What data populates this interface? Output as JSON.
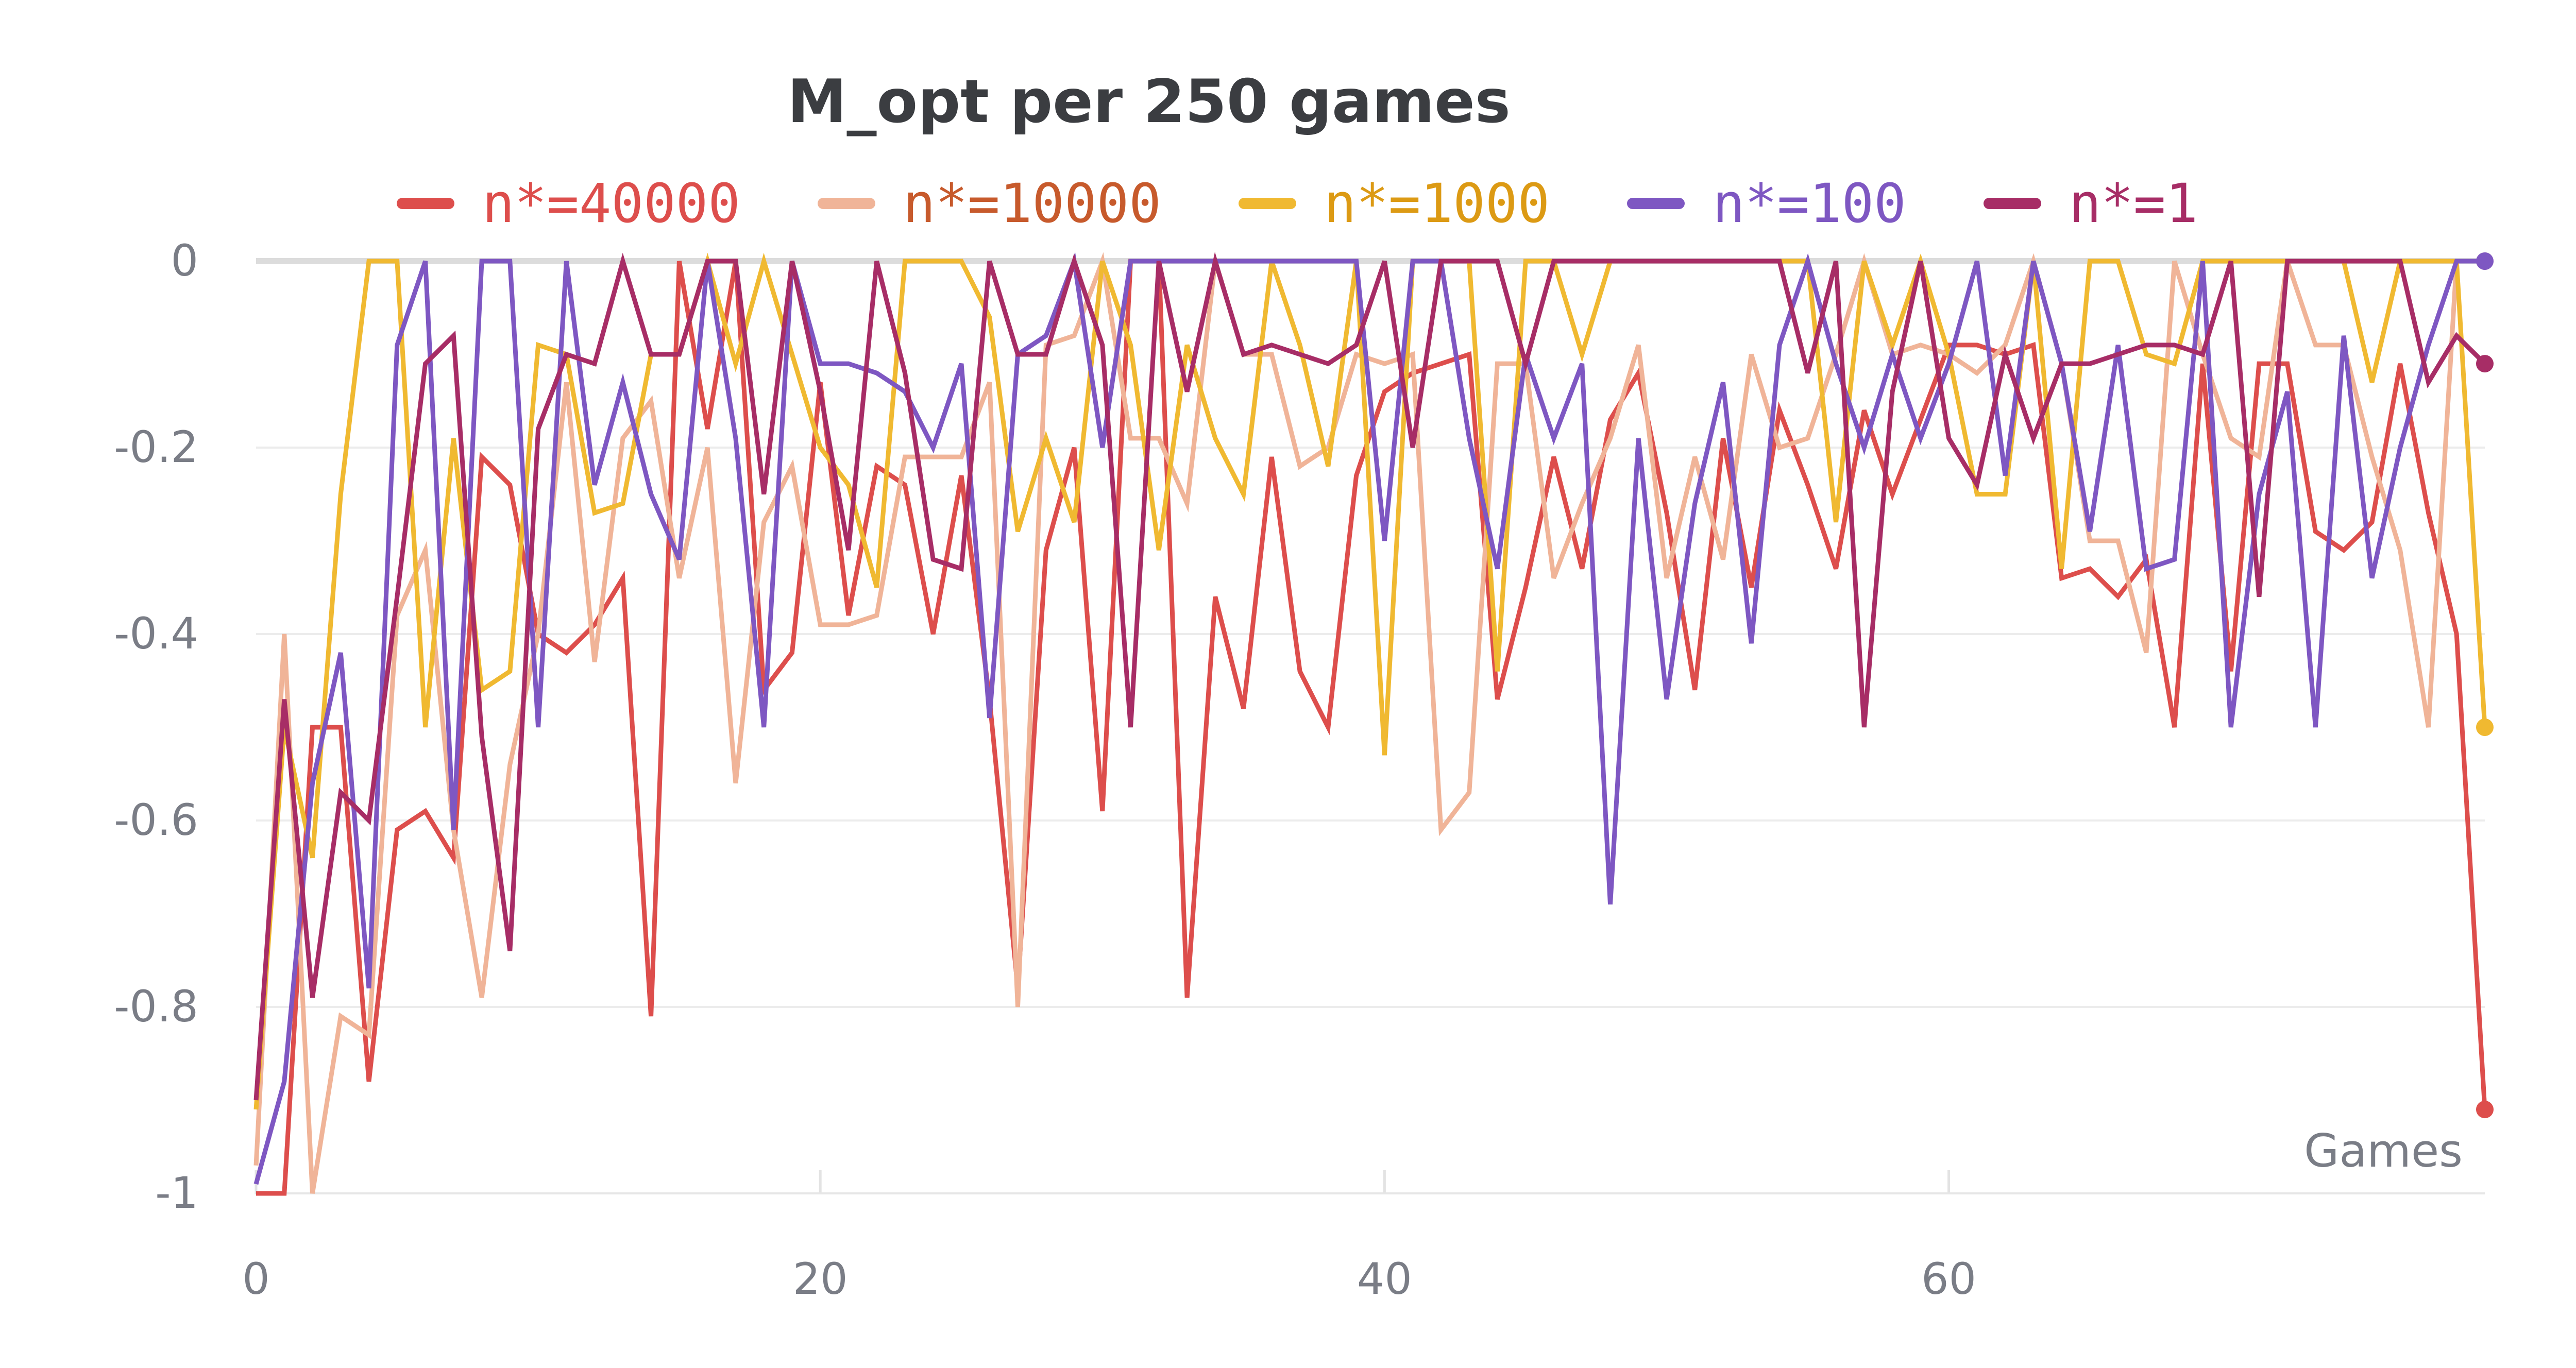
{
  "chart_data": {
    "type": "line",
    "title": "M_opt per 250 games",
    "xlabel": "Games",
    "ylabel": "",
    "xlim": [
      0,
      79
    ],
    "ylim": [
      -1,
      0
    ],
    "x_ticks": [
      0,
      20,
      40,
      60
    ],
    "y_ticks": [
      0,
      -0.2,
      -0.4,
      -0.6,
      -0.8,
      -1
    ],
    "y_tick_labels": [
      "0",
      "-0.2",
      "-0.4",
      "-0.6",
      "-0.8",
      "-1"
    ],
    "grid": true,
    "legend_position": "top",
    "x": [
      0,
      1,
      2,
      3,
      4,
      5,
      6,
      7,
      8,
      9,
      10,
      11,
      12,
      13,
      14,
      15,
      16,
      17,
      18,
      19,
      20,
      21,
      22,
      23,
      24,
      25,
      26,
      27,
      28,
      29,
      30,
      31,
      32,
      33,
      34,
      35,
      36,
      37,
      38,
      39,
      40,
      41,
      42,
      43,
      44,
      45,
      46,
      47,
      48,
      49,
      50,
      51,
      52,
      53,
      54,
      55,
      56,
      57,
      58,
      59,
      60,
      61,
      62,
      63,
      64,
      65,
      66,
      67,
      68,
      69,
      70,
      71,
      72,
      73,
      74,
      75,
      76,
      77,
      78,
      79
    ],
    "series": [
      {
        "name": "n*=40000",
        "color": "#dd4e4c",
        "values": [
          -1,
          -1,
          -0.5,
          -0.5,
          -0.88,
          -0.61,
          -0.59,
          -0.64,
          -0.21,
          -0.24,
          -0.4,
          -0.42,
          -0.39,
          -0.34,
          -0.81,
          0,
          -0.18,
          0,
          -0.46,
          -0.42,
          -0.13,
          -0.38,
          -0.22,
          -0.24,
          -0.4,
          -0.23,
          -0.47,
          -0.78,
          -0.31,
          -0.2,
          -0.59,
          0,
          0,
          -0.79,
          -0.36,
          -0.48,
          -0.21,
          -0.44,
          -0.5,
          -0.23,
          -0.14,
          -0.12,
          -0.11,
          -0.1,
          -0.47,
          -0.35,
          -0.21,
          -0.33,
          -0.17,
          -0.12,
          -0.27,
          -0.46,
          -0.19,
          -0.35,
          -0.16,
          -0.24,
          -0.33,
          -0.16,
          -0.25,
          -0.17,
          -0.09,
          -0.09,
          -0.1,
          -0.09,
          -0.34,
          -0.33,
          -0.36,
          -0.32,
          -0.5,
          -0.11,
          -0.44,
          -0.11,
          -0.11,
          -0.29,
          -0.31,
          -0.28,
          -0.11,
          -0.27,
          -0.4,
          -0.91
        ]
      },
      {
        "name": "n*=10000",
        "color": "#f0b498",
        "values": [
          -0.97,
          -0.4,
          -1,
          -0.81,
          -0.83,
          -0.38,
          -0.31,
          -0.61,
          -0.79,
          -0.54,
          -0.4,
          -0.13,
          -0.43,
          -0.19,
          -0.15,
          -0.34,
          -0.2,
          -0.56,
          -0.28,
          -0.22,
          -0.39,
          -0.39,
          -0.38,
          -0.21,
          -0.21,
          -0.21,
          -0.13,
          -0.8,
          -0.09,
          -0.08,
          0,
          -0.19,
          -0.19,
          -0.26,
          0,
          -0.1,
          -0.1,
          -0.22,
          -0.2,
          -0.1,
          -0.11,
          -0.1,
          -0.61,
          -0.57,
          -0.11,
          -0.11,
          -0.34,
          -0.26,
          -0.19,
          -0.09,
          -0.34,
          -0.21,
          -0.32,
          -0.1,
          -0.2,
          -0.19,
          -0.1,
          0,
          -0.1,
          -0.09,
          -0.1,
          -0.12,
          -0.09,
          0,
          -0.11,
          -0.3,
          -0.3,
          -0.42,
          0,
          -0.1,
          -0.19,
          -0.21,
          0,
          -0.09,
          -0.09,
          -0.21,
          -0.31,
          -0.5,
          0,
          0
        ]
      },
      {
        "name": "n*=1000",
        "color": "#f0b931",
        "values": [
          -0.91,
          -0.5,
          -0.64,
          -0.25,
          0,
          0,
          -0.5,
          -0.19,
          -0.46,
          -0.44,
          -0.09,
          -0.1,
          -0.27,
          -0.26,
          -0.1,
          -0.1,
          0,
          -0.11,
          0,
          -0.1,
          -0.2,
          -0.24,
          -0.35,
          0,
          0,
          0,
          -0.06,
          -0.29,
          -0.19,
          -0.28,
          0,
          -0.09,
          -0.31,
          -0.09,
          -0.19,
          -0.25,
          0,
          -0.09,
          -0.22,
          0,
          -0.53,
          0,
          0,
          0,
          -0.44,
          0,
          0,
          -0.1,
          0,
          0,
          0,
          0,
          0,
          0,
          0,
          0,
          -0.28,
          0,
          -0.09,
          0,
          -0.1,
          -0.25,
          -0.25,
          0,
          -0.33,
          0,
          0,
          -0.1,
          -0.11,
          0,
          0,
          0,
          0,
          0,
          0,
          -0.13,
          0,
          0,
          0,
          -0.5
        ]
      },
      {
        "name": "n*=100",
        "color": "#7e57c2",
        "values": [
          -0.99,
          -0.88,
          -0.56,
          -0.42,
          -0.78,
          -0.09,
          0,
          -0.61,
          0,
          0,
          -0.5,
          0,
          -0.24,
          -0.13,
          -0.25,
          -0.32,
          0,
          -0.19,
          -0.5,
          0,
          -0.11,
          -0.11,
          -0.12,
          -0.14,
          -0.2,
          -0.11,
          -0.49,
          -0.1,
          -0.08,
          0,
          -0.2,
          0,
          0,
          0,
          0,
          0,
          0,
          0,
          0,
          0,
          -0.3,
          0,
          0,
          -0.19,
          -0.33,
          -0.1,
          -0.19,
          -0.11,
          -0.69,
          -0.19,
          -0.47,
          -0.26,
          -0.13,
          -0.41,
          -0.09,
          0,
          -0.11,
          -0.2,
          -0.1,
          -0.19,
          -0.11,
          0,
          -0.23,
          0,
          -0.11,
          -0.29,
          -0.09,
          -0.33,
          -0.32,
          0,
          -0.5,
          -0.25,
          -0.14,
          -0.5,
          -0.08,
          -0.34,
          -0.2,
          -0.09,
          0,
          0
        ]
      },
      {
        "name": "n*=1",
        "color": "#a72d66",
        "values": [
          -0.9,
          -0.47,
          -0.79,
          -0.57,
          -0.6,
          -0.36,
          -0.11,
          -0.08,
          -0.51,
          -0.74,
          -0.18,
          -0.1,
          -0.11,
          0,
          -0.1,
          -0.1,
          0,
          0,
          -0.25,
          0,
          -0.14,
          -0.31,
          0,
          -0.12,
          -0.32,
          -0.33,
          0,
          -0.1,
          -0.1,
          0,
          -0.09,
          -0.5,
          0,
          -0.14,
          0,
          -0.1,
          -0.09,
          -0.1,
          -0.11,
          -0.09,
          0,
          -0.2,
          0,
          0,
          0,
          -0.11,
          0,
          0,
          0,
          0,
          0,
          0,
          0,
          0,
          0,
          -0.12,
          0,
          -0.5,
          -0.14,
          0,
          -0.19,
          -0.24,
          -0.1,
          -0.19,
          -0.11,
          -0.11,
          -0.1,
          -0.09,
          -0.09,
          -0.1,
          0,
          -0.36,
          0,
          0,
          0,
          0,
          0,
          -0.13,
          -0.08,
          -0.11
        ]
      }
    ]
  }
}
